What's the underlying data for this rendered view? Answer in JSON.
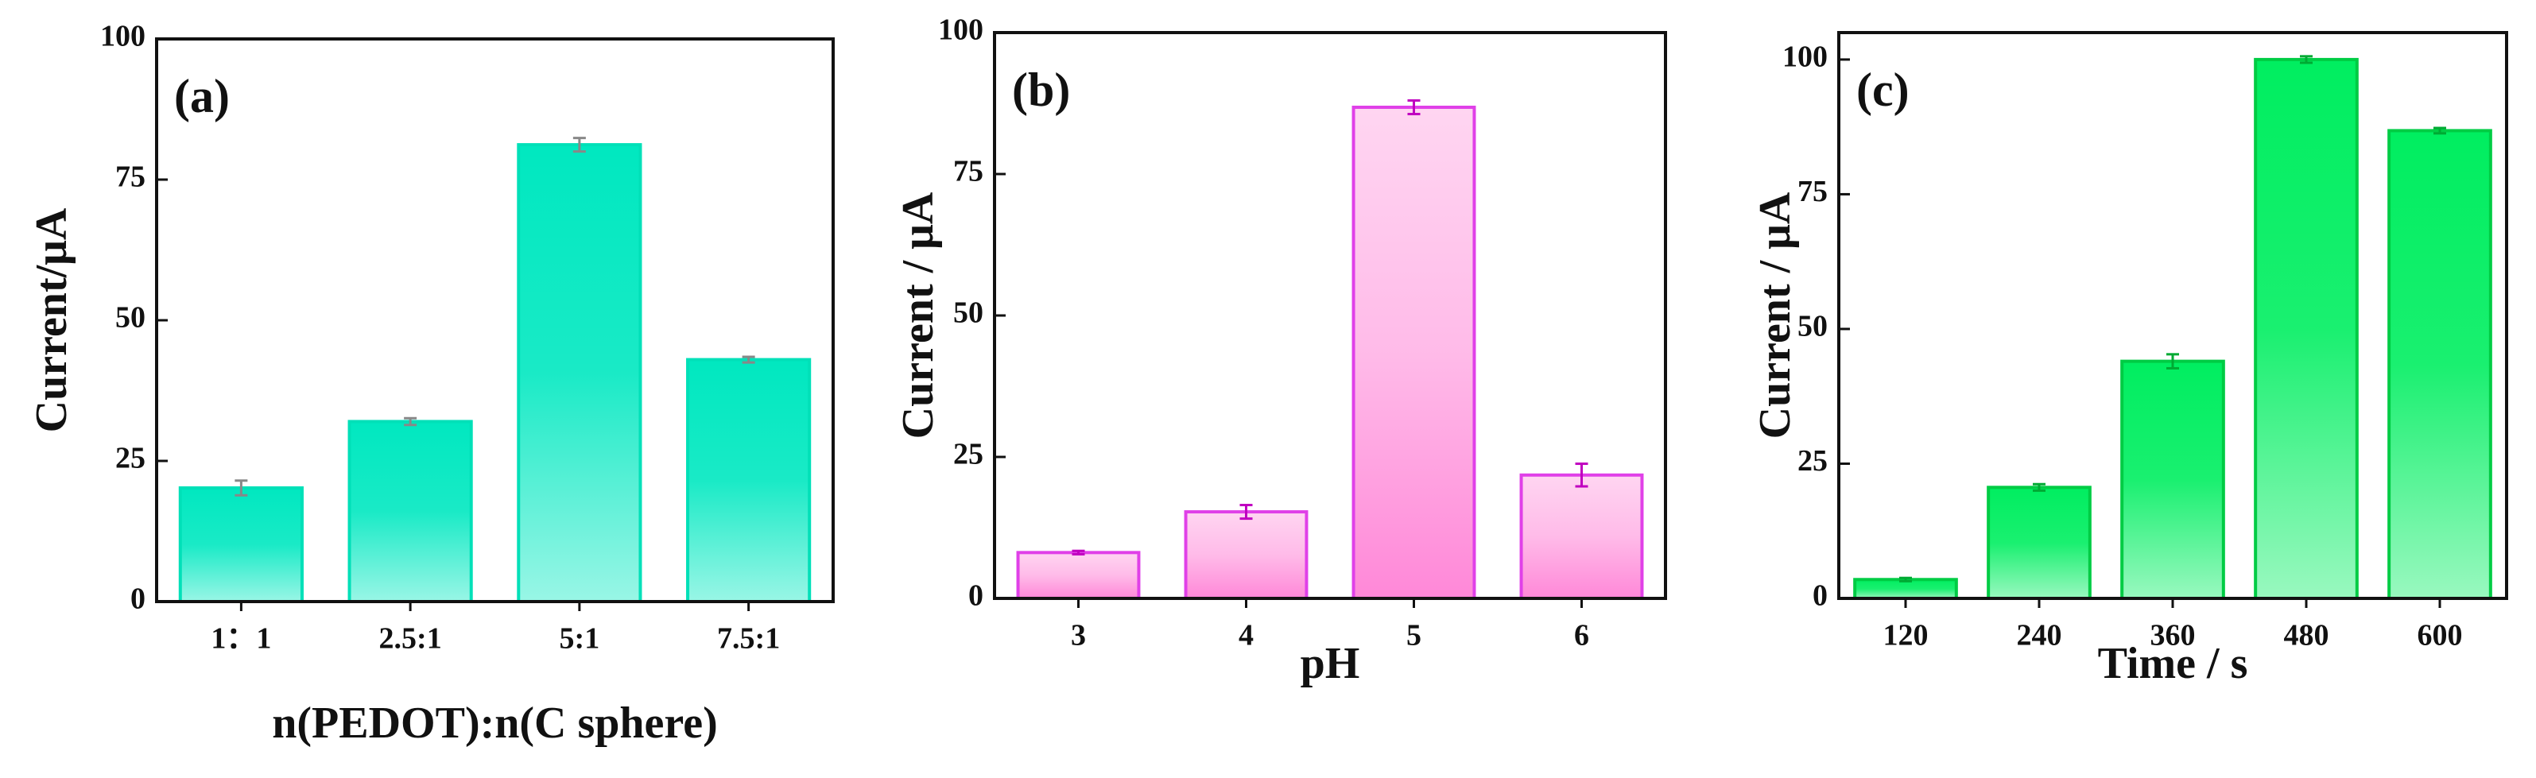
{
  "chart_data": [
    {
      "type": "bar",
      "panel_label": "(a)",
      "x_label": "n(PEDOT):n(C sphere)",
      "y_label": "Current/μA",
      "categories": [
        "1：1",
        "2.5:1",
        "5:1",
        "7.5:1"
      ],
      "values": [
        20.2,
        32,
        81.2,
        43
      ],
      "errors": [
        1.3,
        0.6,
        1.2,
        0.5
      ],
      "color": "#00e8c0",
      "edge_color": "#00e0b8",
      "error_color": "#888888",
      "ylim": [
        0,
        100
      ],
      "yticks": [
        0,
        25,
        50,
        75,
        100
      ]
    },
    {
      "type": "bar",
      "panel_label": "(b)",
      "x_label": "pH",
      "y_label": "Current / μA",
      "categories": [
        "3",
        "4",
        "5",
        "6"
      ],
      "values": [
        8.1,
        15.3,
        86.8,
        21.8
      ],
      "errors": [
        0.3,
        1.2,
        1.2,
        2.0
      ],
      "color": "#ff88d8",
      "edge_color": "#e040e8",
      "error_color": "#c000c0",
      "ylim": [
        0,
        100
      ],
      "yticks": [
        0,
        25,
        50,
        75,
        100
      ]
    },
    {
      "type": "bar",
      "panel_label": "(c)",
      "x_label": "Time / s",
      "y_label": "Current / μA",
      "categories": [
        "120",
        "240",
        "360",
        "480",
        "600"
      ],
      "values": [
        3.5,
        20.6,
        44,
        100,
        86.8
      ],
      "errors": [
        0.3,
        0.6,
        1.3,
        0.6,
        0.5
      ],
      "color": "#00ee60",
      "edge_color": "#00cc44",
      "error_color": "#00aa33",
      "ylim": [
        0,
        105
      ],
      "yticks": [
        0,
        25,
        50,
        75,
        100
      ]
    }
  ]
}
